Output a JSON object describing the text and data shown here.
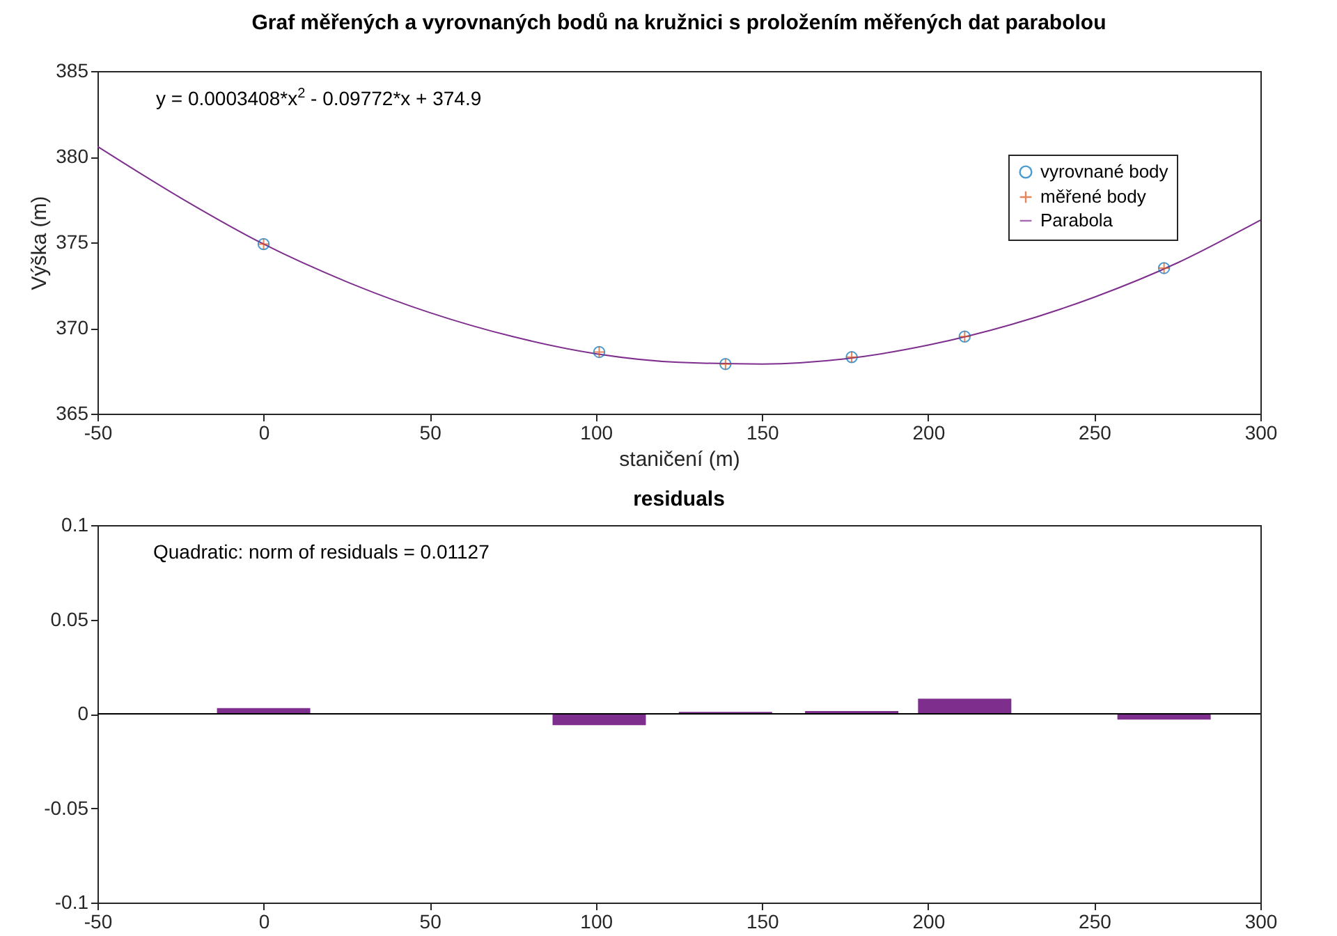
{
  "chart_data": [
    {
      "type": "scatter",
      "title": "Graf měřených a vyrovnaných bodů na kružnici s proložením měřených dat parabolou",
      "xlabel": "staničení (m)",
      "ylabel": "Výška (m)",
      "xlim": [
        -50,
        300
      ],
      "xticks": [
        -50,
        0,
        50,
        100,
        150,
        200,
        250,
        300
      ],
      "ylim": [
        365,
        385
      ],
      "yticks": [
        365,
        370,
        375,
        380,
        385
      ],
      "grid": false,
      "legend": "top right",
      "annotations": [
        "y = 0.0003408*x$^{2}$ - 0.09772*x + 374.9"
      ],
      "series": [
        {
          "name": "vyrovnané body",
          "type": "scatter",
          "marker": "circle",
          "color": "#0072bd",
          "x": [
            0,
            101,
            139,
            177,
            211,
            271
          ],
          "values": [
            374.9,
            368.6,
            367.9,
            368.3,
            369.5,
            373.5
          ]
        },
        {
          "name": "měřené body",
          "type": "scatter",
          "marker": "cross",
          "color": "#d95319",
          "x": [
            0,
            101,
            139,
            177,
            211,
            271
          ],
          "values": [
            374.9,
            368.6,
            367.9,
            368.3,
            369.5,
            373.5
          ]
        },
        {
          "name": "Parabola",
          "type": "line",
          "color": "#7e2f8e",
          "x": [
            -50,
            -25,
            0,
            25,
            50,
            75,
            100,
            125,
            150,
            175,
            200,
            225,
            250,
            275,
            300
          ],
          "values": [
            380.6,
            377.6,
            374.9,
            372.7,
            370.9,
            369.5,
            368.5,
            368.0,
            367.9,
            368.2,
            369.0,
            370.2,
            371.8,
            373.8,
            376.3
          ]
        }
      ]
    },
    {
      "type": "bar",
      "title": "residuals",
      "xlim": [
        -50,
        300
      ],
      "xticks": [
        -50,
        0,
        50,
        100,
        150,
        200,
        250,
        300
      ],
      "ylim": [
        -0.1,
        0.1
      ],
      "yticks": [
        -0.1,
        -0.05,
        0,
        0.05,
        0.1
      ],
      "grid": false,
      "annotations": [
        "Quadratic: norm of residuals = 0.01127"
      ],
      "ref_lines": [
        {
          "axis": "y",
          "value": 0,
          "color": "#000000"
        }
      ],
      "x": [
        0,
        101,
        139,
        177,
        211,
        271
      ],
      "color": "#7e2f8e",
      "values": [
        0.003,
        -0.006,
        0.001,
        0.0015,
        0.008,
        -0.003
      ]
    }
  ]
}
